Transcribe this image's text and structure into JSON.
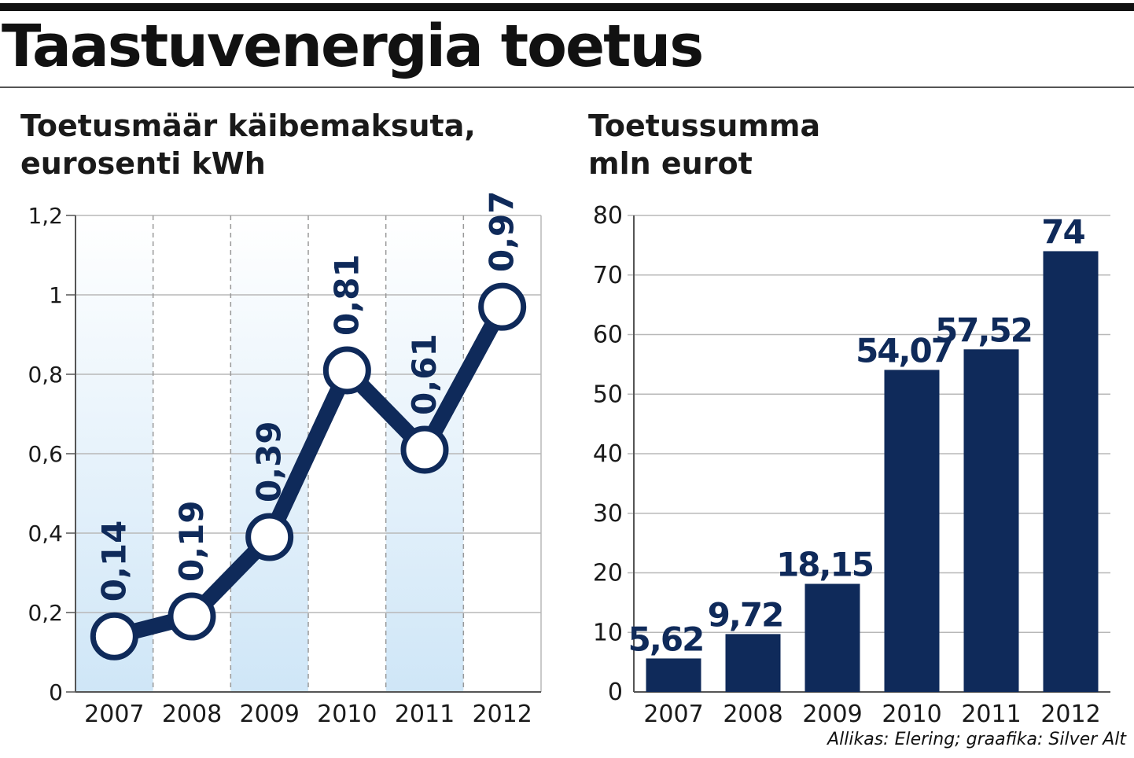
{
  "title": "Taastuvenergia toetus",
  "source": "Allikas: Elering; graafika: Silver Alt",
  "colors": {
    "navy": "#0f2a5a",
    "band": "#cfe6f7",
    "grid": "#b8b8b8",
    "axis": "#555555"
  },
  "chart_data": [
    {
      "type": "line",
      "title_lines": [
        "Toetusmäär käibemaksuta,",
        "eurosenti kWh"
      ],
      "categories": [
        "2007",
        "2008",
        "2009",
        "2010",
        "2011",
        "2012"
      ],
      "values": [
        0.14,
        0.19,
        0.39,
        0.81,
        0.61,
        0.97
      ],
      "value_labels": [
        "0,14",
        "0,19",
        "0,39",
        "0,81",
        "0,61",
        "0,97"
      ],
      "yticks": [
        0,
        0.2,
        0.4,
        0.6,
        0.8,
        1,
        1.2
      ],
      "ytick_labels": [
        "0",
        "0,2",
        "0,4",
        "0,6",
        "0,8",
        "1",
        "1,2"
      ],
      "ylim": [
        0,
        1.2
      ],
      "grid": true
    },
    {
      "type": "bar",
      "title_lines": [
        "Toetussumma",
        "mln eurot"
      ],
      "categories": [
        "2007",
        "2008",
        "2009",
        "2010",
        "2011",
        "2012"
      ],
      "values": [
        5.62,
        9.72,
        18.15,
        54.07,
        57.52,
        74
      ],
      "value_labels": [
        "5,62",
        "9,72",
        "18,15",
        "54,07",
        "57,52",
        "74"
      ],
      "yticks": [
        0,
        10,
        20,
        30,
        40,
        50,
        60,
        70,
        80
      ],
      "ytick_labels": [
        "0",
        "10",
        "20",
        "30",
        "40",
        "50",
        "60",
        "70",
        "80"
      ],
      "ylim": [
        0,
        80
      ],
      "grid": true
    }
  ]
}
